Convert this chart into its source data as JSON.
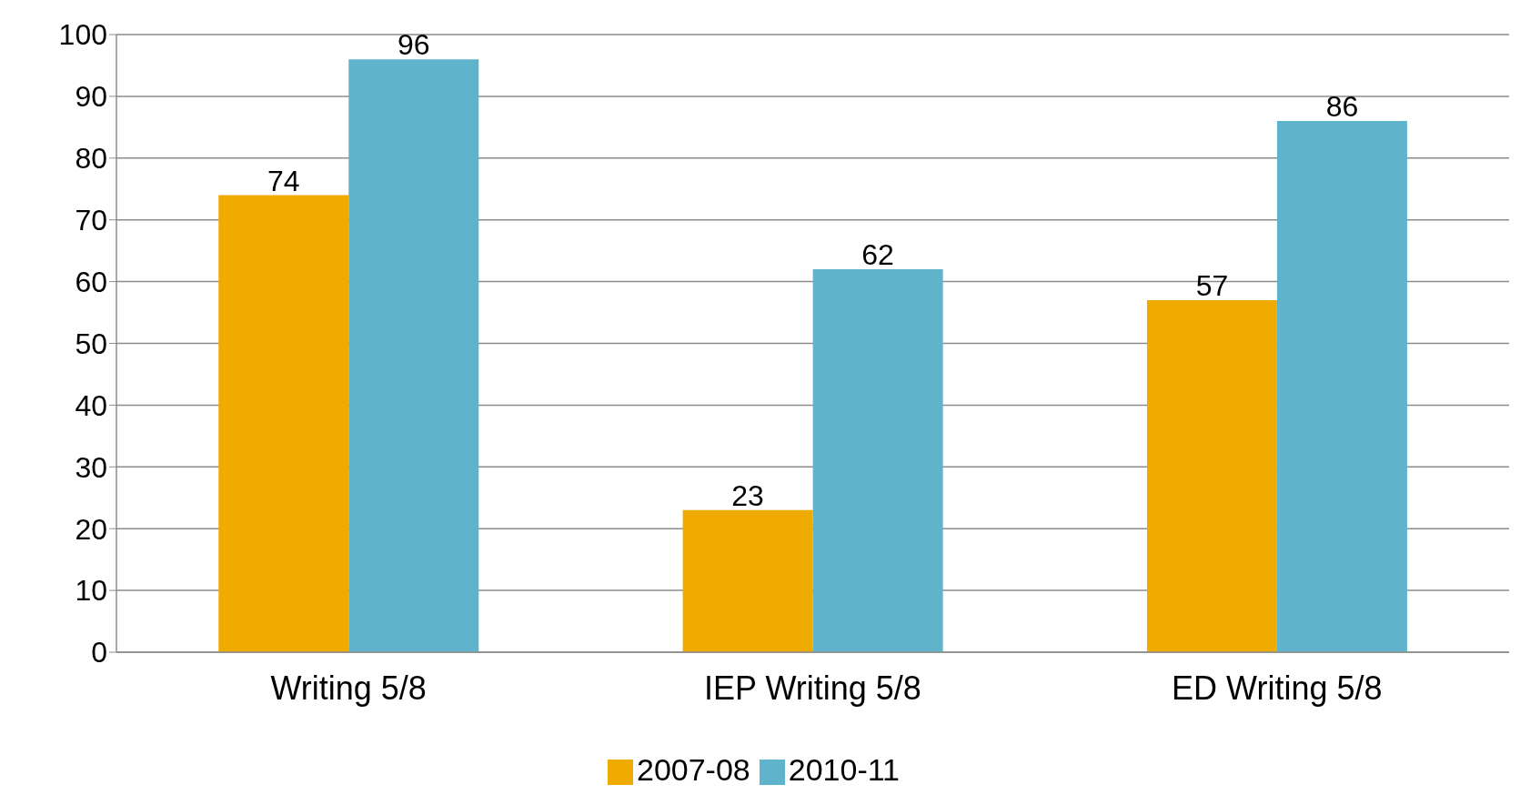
{
  "chart_data": {
    "type": "bar",
    "categories": [
      "Writing 5/8",
      "IEP Writing 5/8",
      "ED Writing 5/8"
    ],
    "series": [
      {
        "name": "2007-08",
        "color": "#f0ab00",
        "values": [
          74,
          23,
          57
        ]
      },
      {
        "name": "2010-11",
        "color": "#5fb4cc",
        "values": [
          96,
          62,
          86
        ]
      }
    ],
    "ylim": [
      0,
      100
    ],
    "yticks": [
      0,
      10,
      20,
      30,
      40,
      50,
      60,
      70,
      80,
      90,
      100
    ],
    "grid": "y",
    "legend": "bottom",
    "data_labels": true
  }
}
